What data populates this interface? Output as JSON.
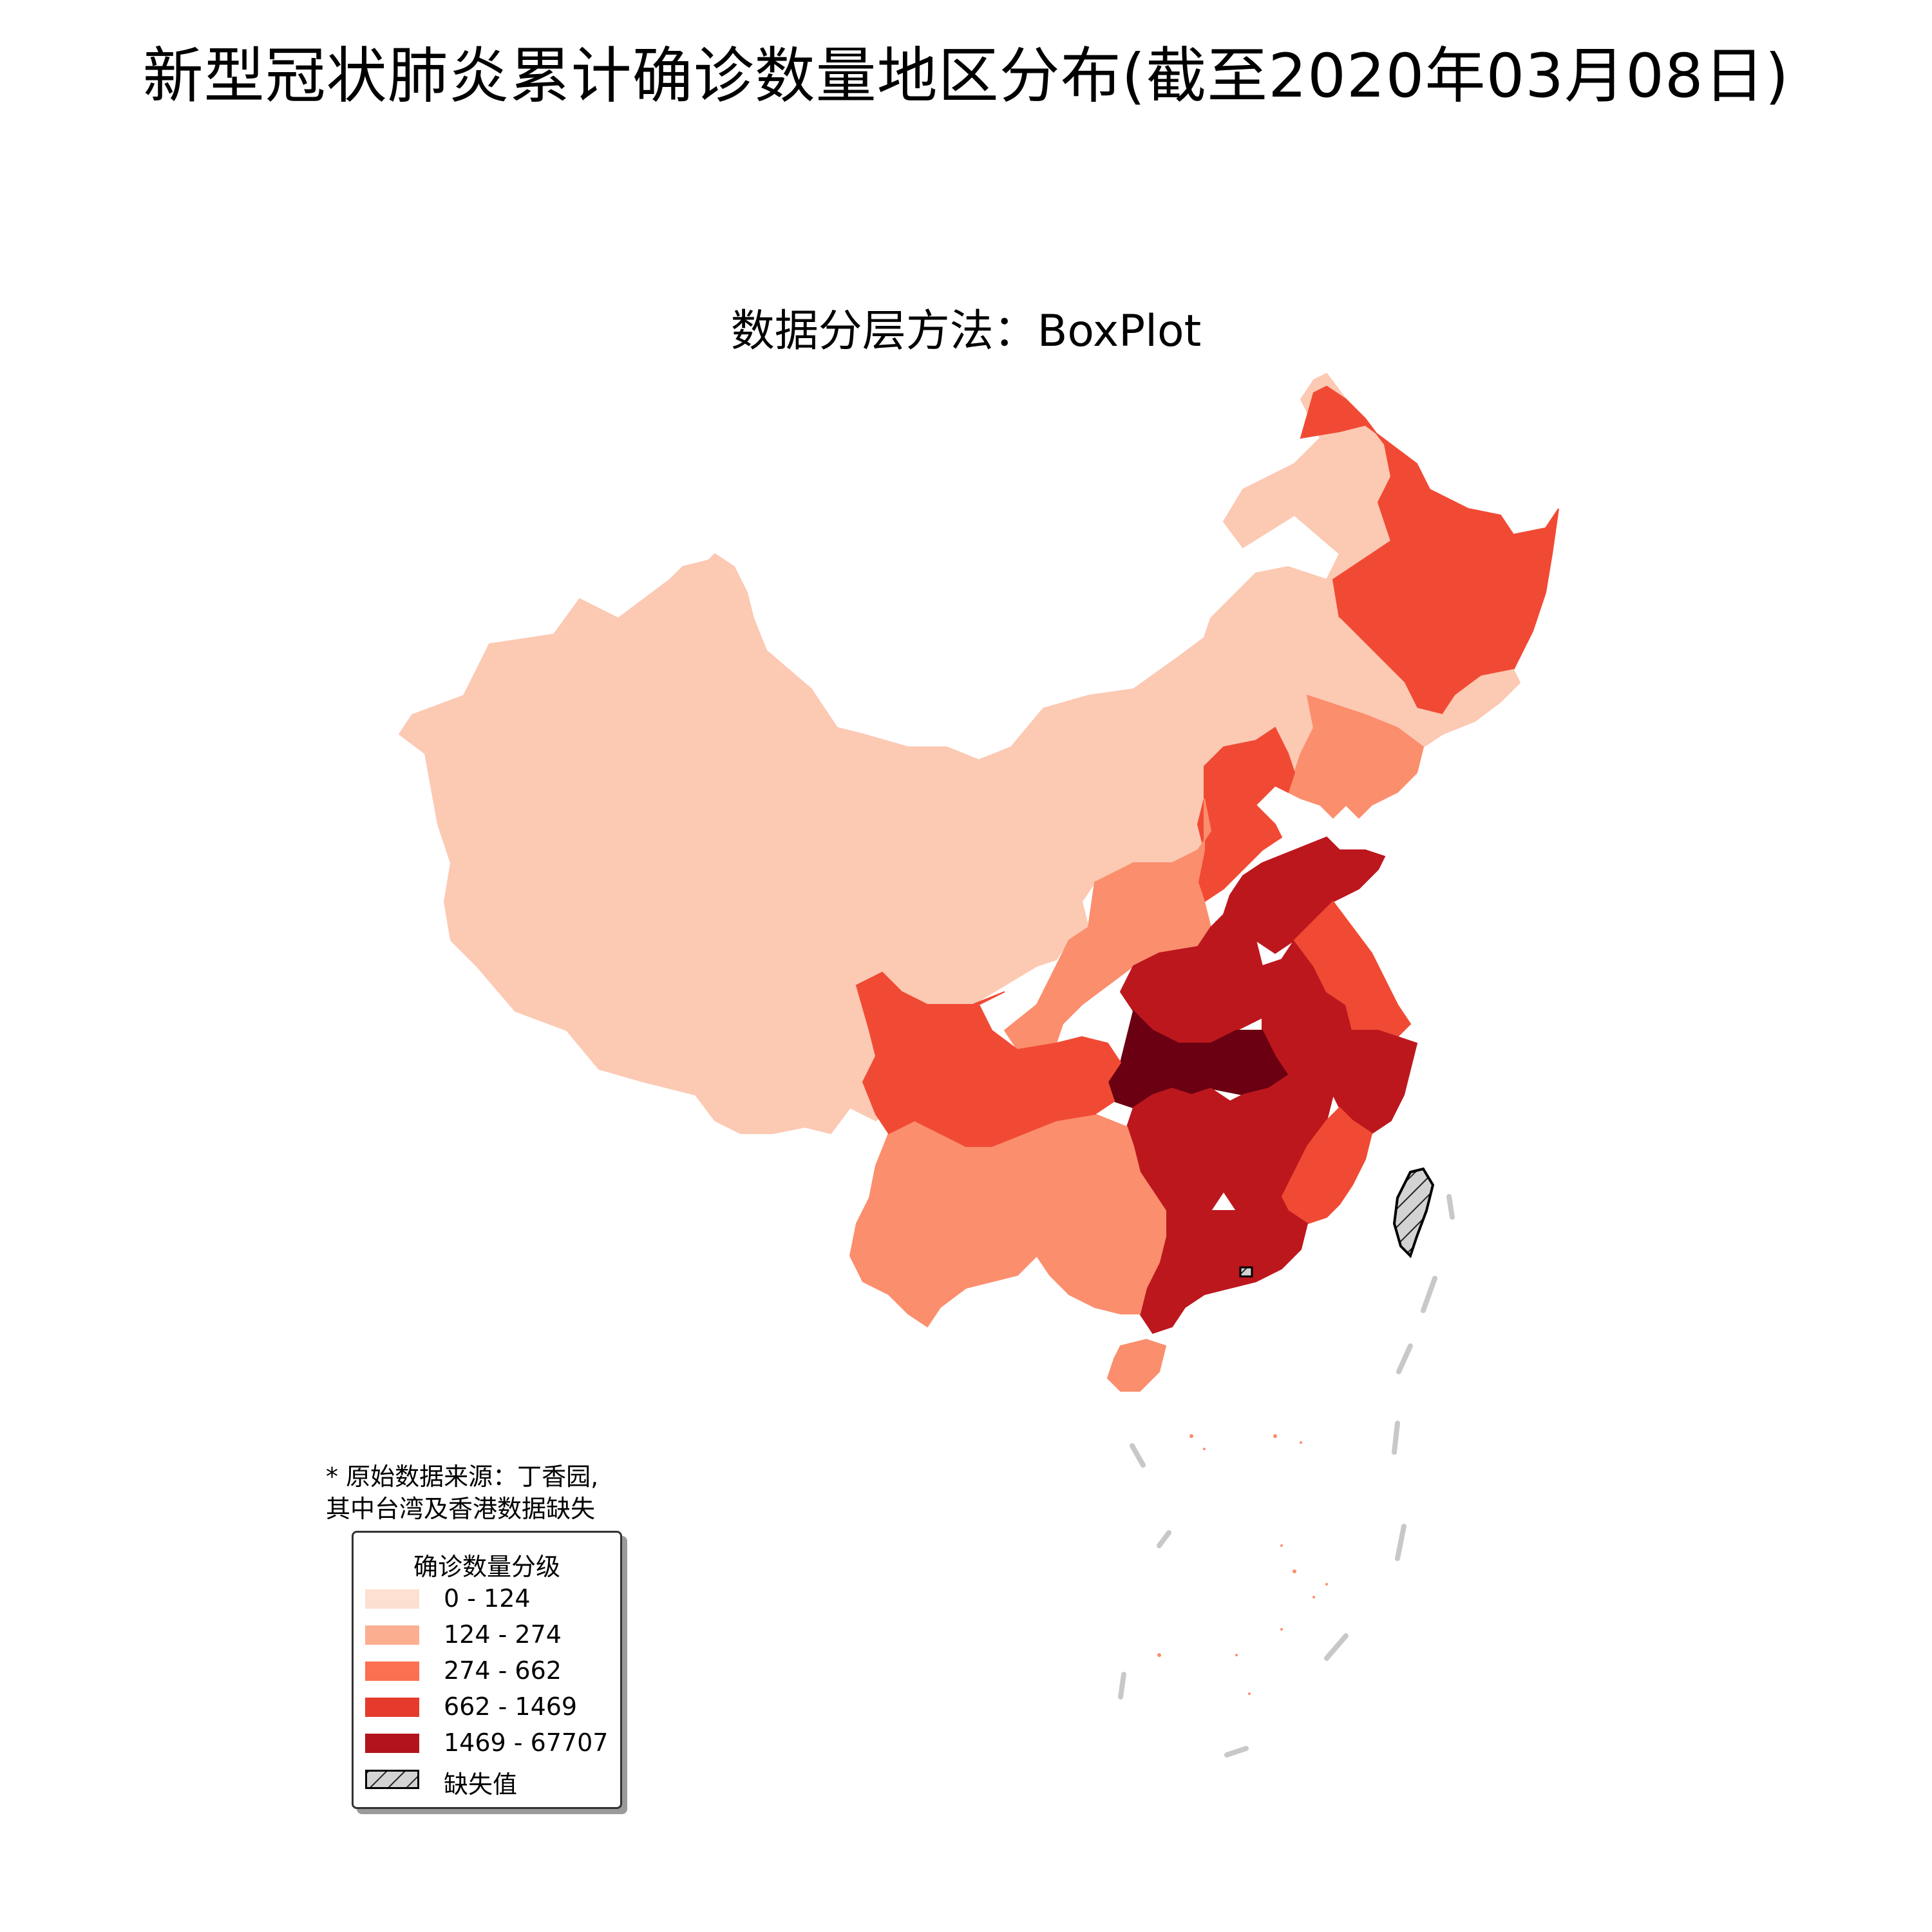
{
  "title": "新型冠状肺炎累计确诊数量地区分布(截至2020年03月08日)",
  "subtitle": "数据分层方法：BoxPlot",
  "note": [
    "* 原始数据来源：丁香园,",
    "其中台湾及香港数据缺失"
  ],
  "legend": {
    "title": "确诊数量分级",
    "classes": [
      {
        "label": "0 - 124",
        "color": "#fde0d2"
      },
      {
        "label": "124 - 274",
        "color": "#fcae91"
      },
      {
        "label": "274 - 662",
        "color": "#fb7050"
      },
      {
        "label": "662 - 1469",
        "color": "#e63a2c"
      },
      {
        "label": "1469 - 67707",
        "color": "#b3131b"
      }
    ],
    "missing_label": "缺失值",
    "missing_color": "#d3d3d3"
  },
  "colors": {
    "class0": "#fcc9b3",
    "class1": "#fb8e6d",
    "class2": "#f14a34",
    "class3": "#bd171e",
    "class4": "#6a0011",
    "missing": "#d3d3d3",
    "nine_dash_line": "#c8c8c8"
  }
}
